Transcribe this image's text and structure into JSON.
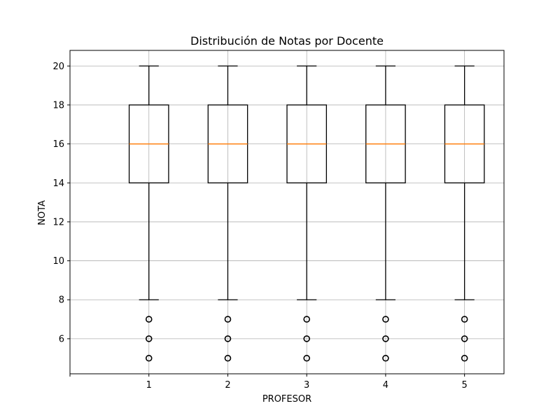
{
  "chart_data": {
    "type": "box",
    "title": "Distribución de Notas por Docente",
    "xlabel": "PROFESOR",
    "ylabel": "NOTA",
    "xlim": [
      0,
      5.5
    ],
    "ylim": [
      4.2,
      20.8
    ],
    "yticks": [
      6,
      8,
      10,
      12,
      14,
      16,
      18,
      20
    ],
    "grid": true,
    "categories": [
      "1",
      "2",
      "3",
      "4",
      "5"
    ],
    "boxes": [
      {
        "category": "1",
        "whisker_low": 8,
        "q1": 14,
        "median": 16,
        "q3": 18,
        "whisker_high": 20,
        "outliers": [
          7,
          6,
          5
        ]
      },
      {
        "category": "2",
        "whisker_low": 8,
        "q1": 14,
        "median": 16,
        "q3": 18,
        "whisker_high": 20,
        "outliers": [
          7,
          6,
          5
        ]
      },
      {
        "category": "3",
        "whisker_low": 8,
        "q1": 14,
        "median": 16,
        "q3": 18,
        "whisker_high": 20,
        "outliers": [
          7,
          6,
          5
        ]
      },
      {
        "category": "4",
        "whisker_low": 8,
        "q1": 14,
        "median": 16,
        "q3": 18,
        "whisker_high": 20,
        "outliers": [
          7,
          6,
          5
        ]
      },
      {
        "category": "5",
        "whisker_low": 8,
        "q1": 14,
        "median": 16,
        "q3": 18,
        "whisker_high": 20,
        "outliers": [
          7,
          6,
          5
        ]
      }
    ],
    "colors": {
      "box": "#000000",
      "median": "#ff7f0e",
      "grid": "#b0b0b0",
      "axes": "#000000"
    }
  }
}
